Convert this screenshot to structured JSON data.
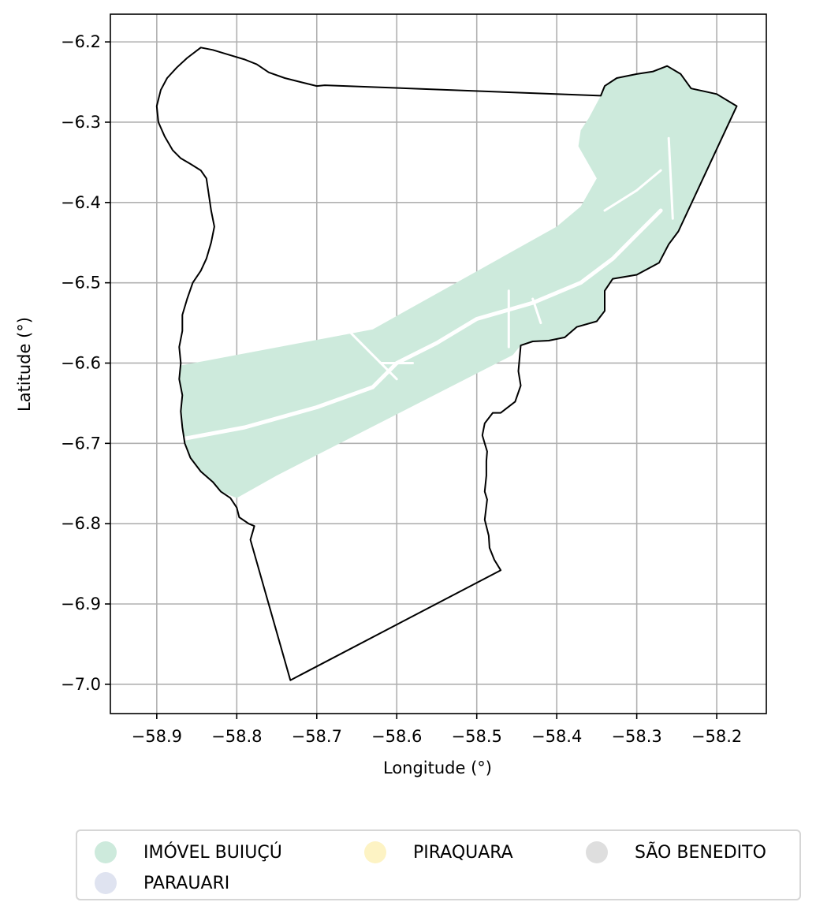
{
  "chart_data": {
    "type": "map",
    "xlabel": "Longitude (°)",
    "ylabel": "Latitude (°)",
    "xlim": [
      -58.958,
      -58.138
    ],
    "ylim": [
      -7.0365,
      -6.1655
    ],
    "xticks": [
      -58.9,
      -58.8,
      -58.7,
      -58.6,
      -58.5,
      -58.4,
      -58.3,
      -58.2
    ],
    "xtick_labels": [
      "−58.9",
      "−58.8",
      "−58.7",
      "−58.6",
      "−58.5",
      "−58.4",
      "−58.3",
      "−58.2"
    ],
    "yticks": [
      -6.2,
      -6.3,
      -6.4,
      -6.5,
      -6.6,
      -6.7,
      -6.8,
      -6.9,
      -7.0
    ],
    "ytick_labels": [
      "−6.2",
      "−6.3",
      "−6.4",
      "−6.5",
      "−6.6",
      "−6.7",
      "−6.8",
      "−6.9",
      "−7.0"
    ],
    "grid": true,
    "legend_position": "bottom",
    "legend": [
      {
        "label": "IMÓVEL BUIUÇÚ",
        "color": "#cdeadc"
      },
      {
        "label": "PARAUARI",
        "color": "#dfe3f0"
      },
      {
        "label": "PIRAQUARA",
        "color": "#fdf3c4"
      },
      {
        "label": "SÃO BENEDITO",
        "color": "#dedede"
      }
    ],
    "boundary_color": "#000000",
    "boundary": [
      [
        -58.845,
        -6.207
      ],
      [
        -58.83,
        -6.21
      ],
      [
        -58.81,
        -6.216
      ],
      [
        -58.79,
        -6.222
      ],
      [
        -58.775,
        -6.228
      ],
      [
        -58.76,
        -6.238
      ],
      [
        -58.74,
        -6.245
      ],
      [
        -58.72,
        -6.25
      ],
      [
        -58.7,
        -6.255
      ],
      [
        -58.69,
        -6.254
      ],
      [
        -58.345,
        -6.267
      ],
      [
        -58.34,
        -6.255
      ],
      [
        -58.325,
        -6.245
      ],
      [
        -58.3,
        -6.24
      ],
      [
        -58.28,
        -6.237
      ],
      [
        -58.262,
        -6.23
      ],
      [
        -58.245,
        -6.24
      ],
      [
        -58.232,
        -6.258
      ],
      [
        -58.2,
        -6.265
      ],
      [
        -58.175,
        -6.28
      ],
      [
        -58.248,
        -6.436
      ],
      [
        -58.26,
        -6.452
      ],
      [
        -58.272,
        -6.475
      ],
      [
        -58.3,
        -6.49
      ],
      [
        -58.33,
        -6.495
      ],
      [
        -58.34,
        -6.51
      ],
      [
        -58.34,
        -6.535
      ],
      [
        -58.35,
        -6.548
      ],
      [
        -58.375,
        -6.555
      ],
      [
        -58.39,
        -6.568
      ],
      [
        -58.41,
        -6.572
      ],
      [
        -58.43,
        -6.573
      ],
      [
        -58.445,
        -6.578
      ],
      [
        -58.448,
        -6.61
      ],
      [
        -58.445,
        -6.628
      ],
      [
        -58.452,
        -6.648
      ],
      [
        -58.47,
        -6.662
      ],
      [
        -58.48,
        -6.662
      ],
      [
        -58.49,
        -6.675
      ],
      [
        -58.493,
        -6.69
      ],
      [
        -58.49,
        -6.7
      ],
      [
        -58.487,
        -6.71
      ],
      [
        -58.488,
        -6.722
      ],
      [
        -58.488,
        -6.74
      ],
      [
        -58.49,
        -6.76
      ],
      [
        -58.487,
        -6.77
      ],
      [
        -58.49,
        -6.795
      ],
      [
        -58.485,
        -6.815
      ],
      [
        -58.484,
        -6.83
      ],
      [
        -58.478,
        -6.845
      ],
      [
        -58.47,
        -6.858
      ],
      [
        -58.733,
        -6.995
      ],
      [
        -58.783,
        -6.82
      ],
      [
        -58.78,
        -6.81
      ],
      [
        -58.778,
        -6.803
      ],
      [
        -58.785,
        -6.8
      ],
      [
        -58.797,
        -6.792
      ],
      [
        -58.8,
        -6.78
      ],
      [
        -58.808,
        -6.768
      ],
      [
        -58.82,
        -6.76
      ],
      [
        -58.83,
        -6.748
      ],
      [
        -58.845,
        -6.735
      ],
      [
        -58.858,
        -6.718
      ],
      [
        -58.865,
        -6.7
      ],
      [
        -58.868,
        -6.68
      ],
      [
        -58.87,
        -6.66
      ],
      [
        -58.868,
        -6.64
      ],
      [
        -58.872,
        -6.62
      ],
      [
        -58.87,
        -6.6
      ],
      [
        -58.872,
        -6.58
      ],
      [
        -58.868,
        -6.56
      ],
      [
        -58.868,
        -6.54
      ],
      [
        -58.862,
        -6.52
      ],
      [
        -58.855,
        -6.5
      ],
      [
        -58.845,
        -6.485
      ],
      [
        -58.838,
        -6.47
      ],
      [
        -58.832,
        -6.45
      ],
      [
        -58.828,
        -6.43
      ],
      [
        -58.832,
        -6.41
      ],
      [
        -58.835,
        -6.39
      ],
      [
        -58.838,
        -6.37
      ],
      [
        -58.845,
        -6.36
      ],
      [
        -58.858,
        -6.352
      ],
      [
        -58.87,
        -6.345
      ],
      [
        -58.88,
        -6.335
      ],
      [
        -58.89,
        -6.318
      ],
      [
        -58.898,
        -6.3
      ],
      [
        -58.9,
        -6.28
      ],
      [
        -58.895,
        -6.26
      ],
      [
        -58.887,
        -6.245
      ],
      [
        -58.875,
        -6.232
      ],
      [
        -58.862,
        -6.22
      ],
      [
        -58.845,
        -6.207
      ]
    ],
    "area_color": "#cdeadc",
    "area_polygon": [
      [
        -58.87,
        -6.603
      ],
      [
        -58.63,
        -6.558
      ],
      [
        -58.4,
        -6.43
      ],
      [
        -58.37,
        -6.405
      ],
      [
        -58.35,
        -6.37
      ],
      [
        -58.373,
        -6.33
      ],
      [
        -58.37,
        -6.31
      ],
      [
        -58.36,
        -6.295
      ],
      [
        -58.345,
        -6.267
      ],
      [
        -58.34,
        -6.255
      ],
      [
        -58.325,
        -6.245
      ],
      [
        -58.3,
        -6.24
      ],
      [
        -58.28,
        -6.237
      ],
      [
        -58.262,
        -6.23
      ],
      [
        -58.245,
        -6.24
      ],
      [
        -58.232,
        -6.258
      ],
      [
        -58.2,
        -6.265
      ],
      [
        -58.175,
        -6.28
      ],
      [
        -58.248,
        -6.436
      ],
      [
        -58.26,
        -6.452
      ],
      [
        -58.272,
        -6.475
      ],
      [
        -58.3,
        -6.49
      ],
      [
        -58.33,
        -6.495
      ],
      [
        -58.34,
        -6.51
      ],
      [
        -58.34,
        -6.535
      ],
      [
        -58.35,
        -6.548
      ],
      [
        -58.375,
        -6.555
      ],
      [
        -58.39,
        -6.568
      ],
      [
        -58.41,
        -6.572
      ],
      [
        -58.43,
        -6.573
      ],
      [
        -58.445,
        -6.578
      ],
      [
        -58.455,
        -6.59
      ],
      [
        -58.75,
        -6.74
      ],
      [
        -58.8,
        -6.768
      ],
      [
        -58.82,
        -6.76
      ],
      [
        -58.83,
        -6.748
      ],
      [
        -58.845,
        -6.735
      ],
      [
        -58.858,
        -6.718
      ],
      [
        -58.865,
        -6.7
      ],
      [
        -58.868,
        -6.68
      ],
      [
        -58.87,
        -6.66
      ],
      [
        -58.868,
        -6.64
      ],
      [
        -58.872,
        -6.62
      ],
      [
        -58.87,
        -6.603
      ]
    ],
    "river_lines": [
      [
        [
          -58.87,
          -6.695
        ],
        [
          -58.79,
          -6.68
        ],
        [
          -58.7,
          -6.655
        ],
        [
          -58.63,
          -6.63
        ],
        [
          -58.6,
          -6.6
        ],
        [
          -58.55,
          -6.575
        ],
        [
          -58.5,
          -6.545
        ],
        [
          -58.43,
          -6.525
        ],
        [
          -58.37,
          -6.5
        ],
        [
          -58.33,
          -6.47
        ],
        [
          -58.3,
          -6.44
        ],
        [
          -58.27,
          -6.41
        ]
      ],
      [
        [
          -58.62,
          -6.6
        ],
        [
          -58.58,
          -6.6
        ]
      ],
      [
        [
          -58.46,
          -6.51
        ],
        [
          -58.46,
          -6.58
        ]
      ],
      [
        [
          -58.43,
          -6.52
        ],
        [
          -58.42,
          -6.55
        ]
      ],
      [
        [
          -58.34,
          -6.41
        ],
        [
          -58.3,
          -6.385
        ],
        [
          -58.27,
          -6.36
        ]
      ],
      [
        [
          -58.26,
          -6.32
        ],
        [
          -58.255,
          -6.42
        ]
      ],
      [
        [
          -58.66,
          -6.56
        ],
        [
          -58.6,
          -6.62
        ]
      ]
    ]
  }
}
